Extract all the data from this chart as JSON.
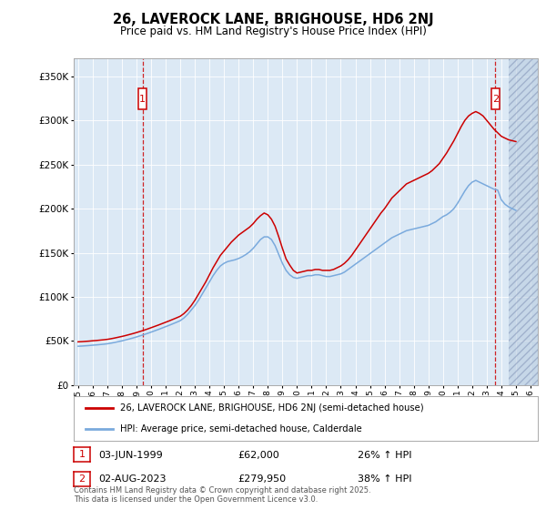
{
  "title": "26, LAVEROCK LANE, BRIGHOUSE, HD6 2NJ",
  "subtitle": "Price paid vs. HM Land Registry's House Price Index (HPI)",
  "bg_color": "#dce9f5",
  "sale1_date": "03-JUN-1999",
  "sale1_price": 62000,
  "sale1_hpi_pct": "26% ↑ HPI",
  "sale2_date": "02-AUG-2023",
  "sale2_price": 279950,
  "sale2_hpi_pct": "38% ↑ HPI",
  "ylim": [
    0,
    370000
  ],
  "yticks": [
    0,
    50000,
    100000,
    150000,
    200000,
    250000,
    300000,
    350000
  ],
  "red_line_color": "#cc0000",
  "blue_line_color": "#7aaadd",
  "marker_box_color": "#cc0000",
  "dashed_line_color": "#cc0000",
  "footer_text": "Contains HM Land Registry data © Crown copyright and database right 2025.\nThis data is licensed under the Open Government Licence v3.0.",
  "hpi_x": [
    1995.0,
    1995.25,
    1995.5,
    1995.75,
    1996.0,
    1996.25,
    1996.5,
    1996.75,
    1997.0,
    1997.25,
    1997.5,
    1997.75,
    1998.0,
    1998.25,
    1998.5,
    1998.75,
    1999.0,
    1999.25,
    1999.5,
    1999.75,
    2000.0,
    2000.25,
    2000.5,
    2000.75,
    2001.0,
    2001.25,
    2001.5,
    2001.75,
    2002.0,
    2002.25,
    2002.5,
    2002.75,
    2003.0,
    2003.25,
    2003.5,
    2003.75,
    2004.0,
    2004.25,
    2004.5,
    2004.75,
    2005.0,
    2005.25,
    2005.5,
    2005.75,
    2006.0,
    2006.25,
    2006.5,
    2006.75,
    2007.0,
    2007.25,
    2007.5,
    2007.75,
    2008.0,
    2008.25,
    2008.5,
    2008.75,
    2009.0,
    2009.25,
    2009.5,
    2009.75,
    2010.0,
    2010.25,
    2010.5,
    2010.75,
    2011.0,
    2011.25,
    2011.5,
    2011.75,
    2012.0,
    2012.25,
    2012.5,
    2012.75,
    2013.0,
    2013.25,
    2013.5,
    2013.75,
    2014.0,
    2014.25,
    2014.5,
    2014.75,
    2015.0,
    2015.25,
    2015.5,
    2015.75,
    2016.0,
    2016.25,
    2016.5,
    2016.75,
    2017.0,
    2017.25,
    2017.5,
    2017.75,
    2018.0,
    2018.25,
    2018.5,
    2018.75,
    2019.0,
    2019.25,
    2019.5,
    2019.75,
    2020.0,
    2020.25,
    2020.5,
    2020.75,
    2021.0,
    2021.25,
    2021.5,
    2021.75,
    2022.0,
    2022.25,
    2022.5,
    2022.75,
    2023.0,
    2023.25,
    2023.5,
    2023.75,
    2024.0,
    2024.25,
    2024.5,
    2024.75,
    2025.0
  ],
  "hpi_y": [
    44000,
    44200,
    44500,
    44800,
    45200,
    45500,
    45900,
    46300,
    46800,
    47500,
    48300,
    49200,
    50100,
    51100,
    52200,
    53300,
    54500,
    55800,
    57100,
    58500,
    60000,
    61500,
    63000,
    64600,
    66200,
    67800,
    69500,
    71200,
    73000,
    76000,
    80000,
    85000,
    90000,
    96000,
    103000,
    110000,
    117000,
    124000,
    130000,
    135000,
    138000,
    140000,
    141000,
    142000,
    143500,
    145500,
    148000,
    151000,
    155000,
    160000,
    165000,
    168000,
    168000,
    165000,
    158000,
    148000,
    138000,
    130000,
    125000,
    122000,
    121000,
    122000,
    123000,
    124000,
    124000,
    125000,
    125000,
    124000,
    123000,
    123000,
    124000,
    125000,
    126000,
    128000,
    131000,
    134000,
    137000,
    140000,
    143000,
    146000,
    149000,
    152000,
    155000,
    158000,
    161000,
    164000,
    167000,
    169000,
    171000,
    173000,
    175000,
    176000,
    177000,
    178000,
    179000,
    180000,
    181000,
    183000,
    185000,
    188000,
    191000,
    193000,
    196000,
    200000,
    206000,
    213000,
    220000,
    226000,
    230000,
    232000,
    230000,
    228000,
    226000,
    224000,
    222000,
    221000,
    210000,
    205000,
    202000,
    200000,
    198000
  ],
  "red_x": [
    1995.0,
    1995.25,
    1995.5,
    1995.75,
    1996.0,
    1996.25,
    1996.5,
    1996.75,
    1997.0,
    1997.25,
    1997.5,
    1997.75,
    1998.0,
    1998.25,
    1998.5,
    1998.75,
    1999.0,
    1999.25,
    1999.5,
    1999.75,
    2000.0,
    2000.25,
    2000.5,
    2000.75,
    2001.0,
    2001.25,
    2001.5,
    2001.75,
    2002.0,
    2002.25,
    2002.5,
    2002.75,
    2003.0,
    2003.25,
    2003.5,
    2003.75,
    2004.0,
    2004.25,
    2004.5,
    2004.75,
    2005.0,
    2005.25,
    2005.5,
    2005.75,
    2006.0,
    2006.25,
    2006.5,
    2006.75,
    2007.0,
    2007.25,
    2007.5,
    2007.75,
    2008.0,
    2008.25,
    2008.5,
    2008.75,
    2009.0,
    2009.25,
    2009.5,
    2009.75,
    2010.0,
    2010.25,
    2010.5,
    2010.75,
    2011.0,
    2011.25,
    2011.5,
    2011.75,
    2012.0,
    2012.25,
    2012.5,
    2012.75,
    2013.0,
    2013.25,
    2013.5,
    2013.75,
    2014.0,
    2014.25,
    2014.5,
    2014.75,
    2015.0,
    2015.25,
    2015.5,
    2015.75,
    2016.0,
    2016.25,
    2016.5,
    2016.75,
    2017.0,
    2017.25,
    2017.5,
    2017.75,
    2018.0,
    2018.25,
    2018.5,
    2018.75,
    2019.0,
    2019.25,
    2019.5,
    2019.75,
    2020.0,
    2020.25,
    2020.5,
    2020.75,
    2021.0,
    2021.25,
    2021.5,
    2021.75,
    2022.0,
    2022.25,
    2022.5,
    2022.75,
    2023.0,
    2023.25,
    2023.5,
    2023.75,
    2024.0,
    2024.25,
    2024.5,
    2024.75,
    2025.0
  ],
  "red_y": [
    49000,
    49200,
    49500,
    49800,
    50200,
    50500,
    50900,
    51300,
    51800,
    52500,
    53300,
    54200,
    55100,
    56100,
    57200,
    58300,
    59500,
    60800,
    62100,
    63500,
    65000,
    66500,
    68000,
    69600,
    71200,
    72800,
    74500,
    76200,
    78000,
    81000,
    85000,
    90000,
    96000,
    103000,
    110000,
    117000,
    125000,
    133000,
    140000,
    147000,
    152000,
    157000,
    162000,
    166000,
    170000,
    173000,
    176000,
    179000,
    183000,
    188000,
    192000,
    195000,
    193000,
    188000,
    180000,
    168000,
    155000,
    143000,
    136000,
    130000,
    127000,
    128000,
    129000,
    130000,
    130000,
    131000,
    131000,
    130000,
    130000,
    130000,
    131000,
    133000,
    135000,
    138000,
    142000,
    147000,
    153000,
    159000,
    165000,
    171000,
    177000,
    183000,
    189000,
    195000,
    200000,
    206000,
    212000,
    216000,
    220000,
    224000,
    228000,
    230000,
    232000,
    234000,
    236000,
    238000,
    240000,
    243000,
    247000,
    251000,
    257000,
    263000,
    270000,
    277000,
    285000,
    293000,
    300000,
    305000,
    308000,
    310000,
    308000,
    305000,
    300000,
    295000,
    290000,
    286000,
    282000,
    279950,
    278000,
    277000,
    276000
  ],
  "hatch_start": 2024.5,
  "xmin": 1994.7,
  "xmax": 2026.5,
  "legend_label_red": "26, LAVEROCK LANE, BRIGHOUSE, HD6 2NJ (semi-detached house)",
  "legend_label_blue": "HPI: Average price, semi-detached house, Calderdale"
}
